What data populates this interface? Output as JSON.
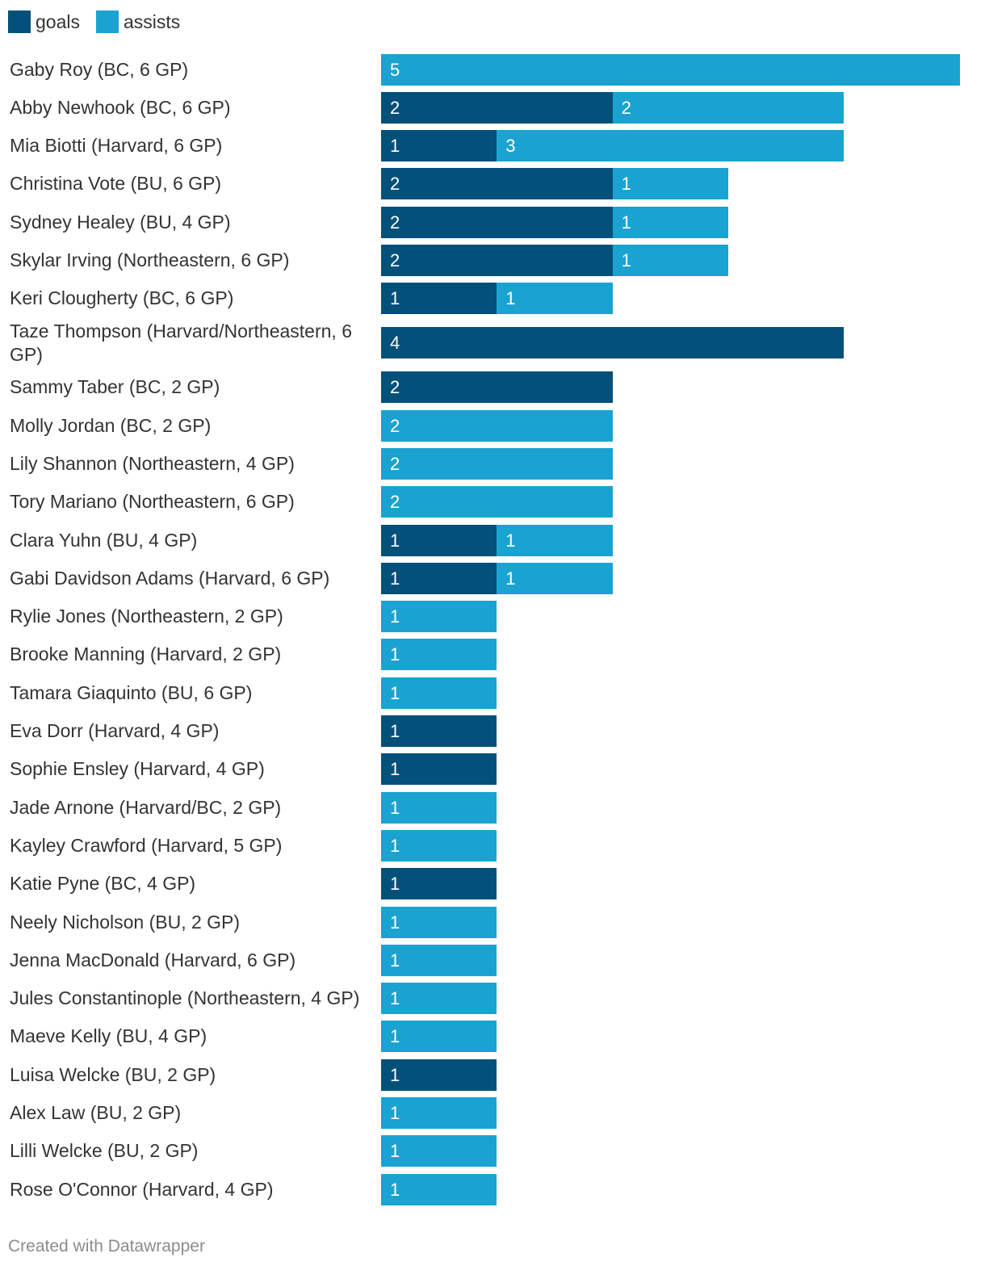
{
  "colors": {
    "goals": "#03507a",
    "assists": "#1aa3d0"
  },
  "legend": [
    {
      "key": "goals",
      "label": "goals"
    },
    {
      "key": "assists",
      "label": "assists"
    }
  ],
  "footer": "Created with Datawrapper",
  "chart_data": {
    "type": "bar",
    "orientation": "horizontal",
    "stacked": true,
    "title": "",
    "xlabel": "",
    "ylabel": "",
    "xlim": [
      0,
      5
    ],
    "categories": [
      "Gaby Roy (BC, 6 GP)",
      "Abby Newhook (BC, 6 GP)",
      "Mia Biotti (Harvard, 6 GP)",
      "Christina Vote (BU, 6 GP)",
      "Sydney Healey (BU, 4 GP)",
      "Skylar Irving (Northeastern, 6 GP)",
      "Keri Clougherty (BC, 6 GP)",
      "Taze Thompson (Harvard/Northeastern, 6 GP)",
      "Sammy Taber (BC, 2 GP)",
      "Molly Jordan (BC, 2 GP)",
      "Lily Shannon (Northeastern, 4 GP)",
      "Tory Mariano (Northeastern, 6 GP)",
      "Clara Yuhn (BU, 4 GP)",
      "Gabi Davidson Adams (Harvard, 6 GP)",
      "Rylie Jones (Northeastern, 2 GP)",
      "Brooke Manning (Harvard, 2 GP)",
      "Tamara Giaquinto (BU, 6 GP)",
      "Eva Dorr (Harvard, 4 GP)",
      "Sophie Ensley (Harvard, 4 GP)",
      "Jade Arnone (Harvard/BC, 2 GP)",
      "Kayley Crawford (Harvard, 5 GP)",
      "Katie Pyne (BC, 4 GP)",
      "Neely Nicholson (BU, 2 GP)",
      "Jenna MacDonald (Harvard, 6 GP)",
      "Jules Constantinople (Northeastern, 4 GP)",
      "Maeve Kelly (BU, 4 GP)",
      "Luisa Welcke (BU, 2 GP)",
      "Alex Law (BU, 2 GP)",
      "Lilli Welcke (BU, 2 GP)",
      "Rose O'Connor (Harvard, 4 GP)"
    ],
    "series": [
      {
        "name": "goals",
        "values": [
          0,
          2,
          1,
          2,
          2,
          2,
          1,
          4,
          2,
          0,
          0,
          0,
          1,
          1,
          0,
          0,
          0,
          1,
          1,
          0,
          0,
          1,
          0,
          0,
          0,
          0,
          1,
          0,
          0,
          0
        ]
      },
      {
        "name": "assists",
        "values": [
          5,
          2,
          3,
          1,
          1,
          1,
          1,
          0,
          0,
          2,
          2,
          2,
          1,
          1,
          1,
          1,
          1,
          0,
          0,
          1,
          1,
          0,
          1,
          1,
          1,
          1,
          0,
          1,
          1,
          1
        ]
      }
    ]
  }
}
